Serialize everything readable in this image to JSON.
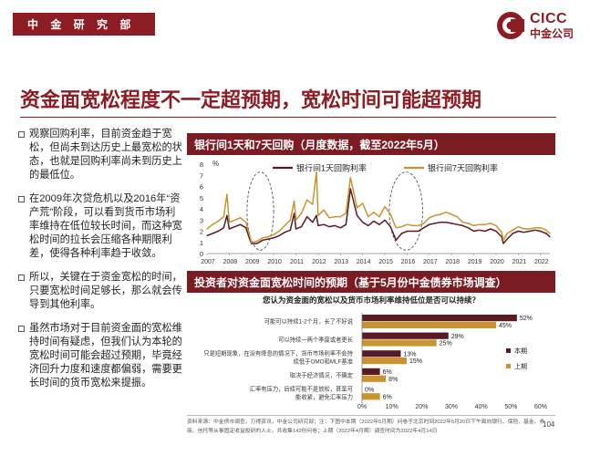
{
  "header": {
    "department": "中 金 研 究 部",
    "logo_en": "CICC",
    "logo_cn": "中金公司"
  },
  "page_title": "资金面宽松程度不一定超预期，宽松时间可能超预期",
  "bullets": [
    "观察回购利率，目前资金趋于宽松，但尚未到达历史上最宽松的状态，也就是回购利率尚未到历史上的最低位。",
    "在2009年次贷危机以及2016年“资产荒”阶段，可以看到货币市场利率维持在低位较长时间，而这种宽松时间的拉长会压缩各种期限利差，使得各种利率趋于收敛。",
    "所以，关键在于资金宽松的时间，只要宽松时间足够长，那么就会传导到其他利率。",
    "虽然市场对于目前资金面的宽松维持时间有疑虑，但我们认为本轮的宽松时间可能会超过预期，毕竟经济回升力度和速度都偏弱，需要更长时间的货币宽松来提振。"
  ],
  "chart1_title": "银行间1天和7天回购（月度数据，截至2022年5月）",
  "chart2_title": "投资者对资金面宽松时间的预期（基于5月份中金债券市场调查）",
  "footnote": "资料来源：中金债市调查，万得资讯，中金公司研究部；注：下图中本期（2022年5月期）问卷于北京时间2022年5月20日下午面向银行、保险、基金、券商、信托等从事固定收益投研的人士，共收集142份问卷；上期（2022年4月期）调查时间为2022年4月14日",
  "page_number": "104",
  "colors": {
    "brand": "#8c1d24",
    "header_bg": "#7a1c22",
    "series_dark": "#5a1a24",
    "series_gold": "#c9932f"
  },
  "chart_data": [
    {
      "type": "line",
      "title": "银行间1天和7天回购（月度数据，截至2022年5月）",
      "ylabel": "%",
      "ylim": [
        0,
        8
      ],
      "yticks": [
        0,
        1,
        2,
        3,
        4,
        5,
        6,
        7,
        8
      ],
      "x_tick_labels": [
        "2007",
        "2008",
        "2009",
        "2010",
        "2011",
        "2012",
        "2013",
        "2014",
        "2015",
        "2016",
        "2017",
        "2018",
        "2019",
        "2020",
        "2021",
        "2022"
      ],
      "x_start": 2007.0,
      "x_end": 2022.42,
      "highlight_periods": [
        [
          2008.8,
          2010.0
        ],
        [
          2015.2,
          2016.7
        ]
      ],
      "series": [
        {
          "name": "银行间1天回购利率",
          "color": "#5a1a24",
          "x": [
            2007.0,
            2007.25,
            2007.5,
            2007.75,
            2007.9,
            2008.0,
            2008.25,
            2008.5,
            2008.75,
            2008.92,
            2009.0,
            2009.25,
            2009.5,
            2009.75,
            2010.0,
            2010.25,
            2010.5,
            2010.75,
            2010.92,
            2011.0,
            2011.25,
            2011.5,
            2011.75,
            2011.92,
            2012.0,
            2012.25,
            2012.5,
            2012.75,
            2013.0,
            2013.25,
            2013.45,
            2013.75,
            2014.0,
            2014.25,
            2014.5,
            2014.75,
            2015.0,
            2015.25,
            2015.5,
            2015.75,
            2016.0,
            2016.25,
            2016.5,
            2016.75,
            2017.0,
            2017.25,
            2017.5,
            2017.75,
            2018.0,
            2018.25,
            2018.5,
            2018.75,
            2019.0,
            2019.25,
            2019.5,
            2019.75,
            2020.0,
            2020.25,
            2020.33,
            2020.5,
            2020.75,
            2021.0,
            2021.25,
            2021.5,
            2021.75,
            2022.0,
            2022.25,
            2022.42
          ],
          "values": [
            1.6,
            1.8,
            2.0,
            2.3,
            3.4,
            2.2,
            2.4,
            2.6,
            2.3,
            1.3,
            0.9,
            0.9,
            1.2,
            1.3,
            1.4,
            1.6,
            1.9,
            2.1,
            3.6,
            2.2,
            2.4,
            3.3,
            2.8,
            3.4,
            2.5,
            2.6,
            2.4,
            2.5,
            2.3,
            2.6,
            5.8,
            3.4,
            2.8,
            2.5,
            2.9,
            2.6,
            3.0,
            2.4,
            1.2,
            1.8,
            2.0,
            2.0,
            2.0,
            2.3,
            2.6,
            2.7,
            2.8,
            2.8,
            2.7,
            2.6,
            2.5,
            2.3,
            2.0,
            2.1,
            2.0,
            2.2,
            2.0,
            1.5,
            0.9,
            1.3,
            1.8,
            2.0,
            1.9,
            2.0,
            2.1,
            2.0,
            1.8,
            1.5
          ]
        },
        {
          "name": "银行间7天回购利率",
          "color": "#c9932f",
          "x": [
            2007.0,
            2007.25,
            2007.5,
            2007.75,
            2007.9,
            2008.0,
            2008.25,
            2008.5,
            2008.75,
            2008.92,
            2009.0,
            2009.25,
            2009.5,
            2009.75,
            2010.0,
            2010.25,
            2010.5,
            2010.75,
            2010.92,
            2011.0,
            2011.25,
            2011.5,
            2011.75,
            2011.92,
            2012.0,
            2012.25,
            2012.5,
            2012.75,
            2013.0,
            2013.25,
            2013.45,
            2013.75,
            2014.0,
            2014.25,
            2014.5,
            2014.75,
            2015.0,
            2015.25,
            2015.5,
            2015.75,
            2016.0,
            2016.25,
            2016.5,
            2016.75,
            2017.0,
            2017.25,
            2017.5,
            2017.75,
            2018.0,
            2018.25,
            2018.5,
            2018.75,
            2019.0,
            2019.25,
            2019.5,
            2019.75,
            2020.0,
            2020.25,
            2020.33,
            2020.5,
            2020.75,
            2021.0,
            2021.25,
            2021.5,
            2021.75,
            2022.0,
            2022.25,
            2022.42
          ],
          "values": [
            2.2,
            2.6,
            2.9,
            3.3,
            5.3,
            2.8,
            3.0,
            3.2,
            2.8,
            1.6,
            1.0,
            1.1,
            1.4,
            1.5,
            1.7,
            2.0,
            2.5,
            3.0,
            4.7,
            3.0,
            3.6,
            4.8,
            4.4,
            7.3,
            3.4,
            3.9,
            3.2,
            3.3,
            3.3,
            3.6,
            6.8,
            4.1,
            4.5,
            3.3,
            3.7,
            3.3,
            4.2,
            3.5,
            2.3,
            2.4,
            2.6,
            2.5,
            2.5,
            2.7,
            3.2,
            3.4,
            3.5,
            3.7,
            3.5,
            3.3,
            2.8,
            2.7,
            2.5,
            2.6,
            2.6,
            2.7,
            2.5,
            1.9,
            1.2,
            1.8,
            2.1,
            2.4,
            2.2,
            2.2,
            2.3,
            2.3,
            2.1,
            1.8
          ]
        }
      ]
    },
    {
      "type": "bar",
      "orientation": "horizontal",
      "title": "您认为资金面的宽松以及货币市场利率维持低位是否可以持续？",
      "categories": [
        "可能可以持续1-2个月，长了不好说",
        "可以持续一两个季度或者更长",
        "只是短期现象，在没有降息的情况下，货币市场利率不会持续低于OMO和MLF基准",
        "取决于经济情况，不确定",
        "汇率有压力，后续可能不是放松，甚至可能收紧，避免汇率压力"
      ],
      "xlim": [
        0,
        60
      ],
      "xticks": [
        "0%",
        "10%",
        "20%",
        "30%",
        "40%",
        "50%",
        "60%"
      ],
      "series": [
        {
          "name": "本期",
          "color": "#5a1a24",
          "values": [
            52,
            29,
            13,
            6,
            0
          ]
        },
        {
          "name": "上期",
          "color": "#c9932f",
          "values": [
            45,
            25,
            15,
            8,
            6
          ]
        }
      ]
    }
  ]
}
